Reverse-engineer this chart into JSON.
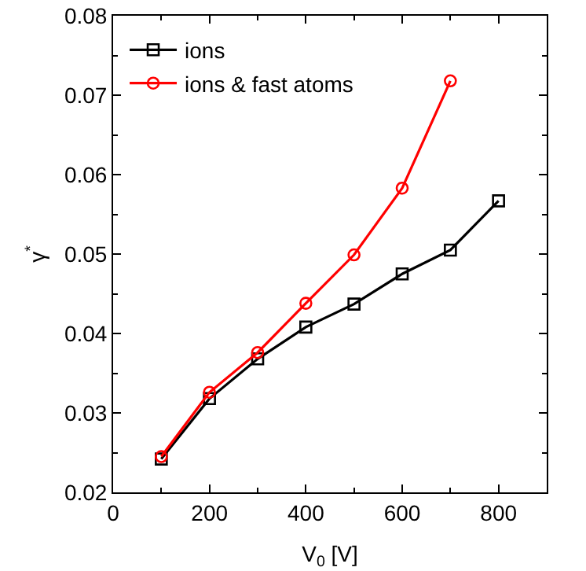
{
  "chart_data": {
    "type": "line",
    "xlabel": "V$_{0}$ [V]",
    "ylabel": "γ$^{*}$",
    "xlim": [
      0,
      900
    ],
    "xticks": [
      0,
      200,
      400,
      600,
      800
    ],
    "ylim": [
      0.02,
      0.08
    ],
    "yticks": [
      0.02,
      0.03,
      0.04,
      0.05,
      0.06,
      0.07,
      0.08
    ],
    "grid": false,
    "legend": "top left",
    "line_style": "solid",
    "series": [
      {
        "name": "ions",
        "color": "#000000",
        "marker": "square",
        "x": [
          100,
          200,
          300,
          400,
          500,
          600,
          700,
          800
        ],
        "values": [
          0.0242,
          0.0318,
          0.0368,
          0.0408,
          0.0437,
          0.0475,
          0.0505,
          0.0567
        ]
      },
      {
        "name": "ions & fast atoms",
        "color": "#ff0000",
        "marker": "circle",
        "x": [
          100,
          200,
          300,
          400,
          500,
          600,
          700
        ],
        "values": [
          0.0245,
          0.0326,
          0.0376,
          0.0438,
          0.0499,
          0.0583,
          0.0718
        ]
      }
    ]
  }
}
